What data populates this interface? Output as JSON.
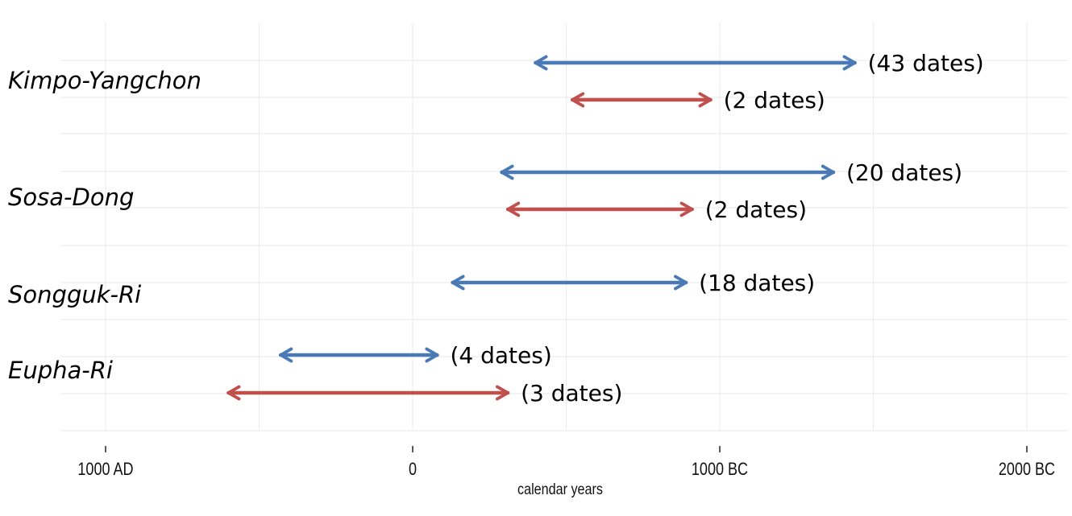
{
  "chart_data": {
    "type": "range",
    "xlabel": "calendar years",
    "x_axis": {
      "reversed": true,
      "range": [
        1150,
        -2100
      ],
      "ticks": [
        {
          "value": 1000,
          "label": "1000 AD"
        },
        {
          "value": 0,
          "label": "0"
        },
        {
          "value": -1000,
          "label": "1000 BC"
        },
        {
          "value": -2000,
          "label": "2000 BC"
        }
      ]
    },
    "grid": true,
    "colors": {
      "blue": "#4a7ab5",
      "red": "#c0504d"
    },
    "sites": [
      {
        "name": "Kimpo-Yangchon",
        "ranges": [
          {
            "color": "blue",
            "start": -400,
            "end": -1440,
            "label": "(43 dates)"
          },
          {
            "color": "red",
            "start": -520,
            "end": -970,
            "label": "(2 dates)"
          }
        ]
      },
      {
        "name": "Sosa-Dong",
        "ranges": [
          {
            "color": "blue",
            "start": -290,
            "end": -1370,
            "label": "(20 dates)"
          },
          {
            "color": "red",
            "start": -310,
            "end": -910,
            "label": "(2 dates)"
          }
        ]
      },
      {
        "name": "Songguk-Ri",
        "ranges": [
          {
            "color": "blue",
            "start": -130,
            "end": -890,
            "label": "(18 dates)"
          }
        ]
      },
      {
        "name": "Eupha-Ri",
        "ranges": [
          {
            "color": "blue",
            "start": 430,
            "end": -80,
            "label": "(4 dates)"
          },
          {
            "color": "red",
            "start": 600,
            "end": -310,
            "label": "(3 dates)"
          }
        ]
      }
    ]
  }
}
